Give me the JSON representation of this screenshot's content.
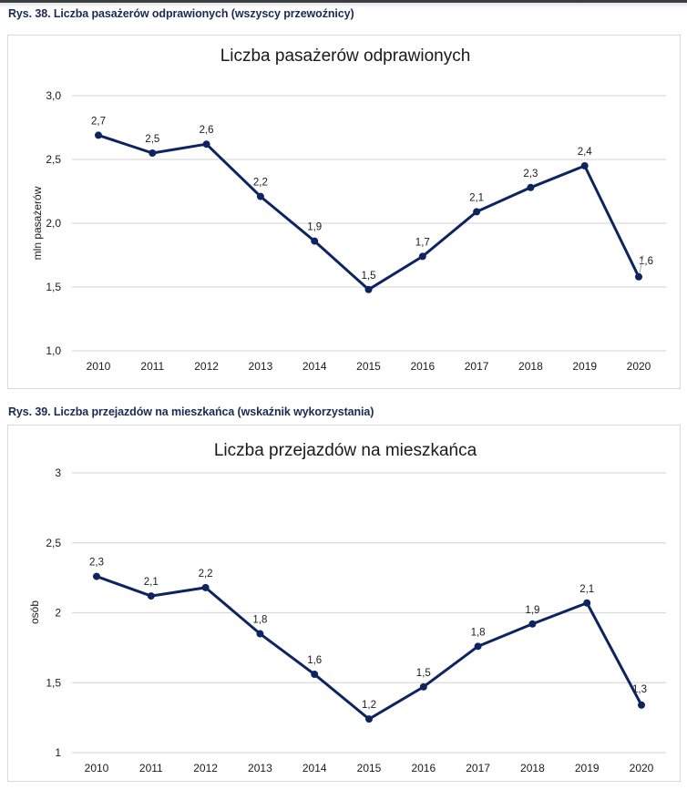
{
  "captions": {
    "fig38": "Rys. 38. Liczba pasażerów odprawionych (wszyscy przewoźnicy)",
    "fig39": "Rys. 39. Liczba przejazdów na mieszkańca (wskaźnik wykorzystania)"
  },
  "colors": {
    "line": "#0d2461",
    "grid": "#d9d9d9",
    "caption": "#1b2a55"
  },
  "chart_data": [
    {
      "type": "line",
      "title": "Liczba pasażerów odprawionych",
      "xlabel": "",
      "ylabel": "mln pasażerów",
      "categories": [
        "2010",
        "2011",
        "2012",
        "2013",
        "2014",
        "2015",
        "2016",
        "2017",
        "2018",
        "2019",
        "2020"
      ],
      "values": [
        2.69,
        2.55,
        2.62,
        2.21,
        1.86,
        1.48,
        1.74,
        2.09,
        2.28,
        2.45,
        1.58
      ],
      "data_labels": [
        "2,7",
        "2,5",
        "2,6",
        "2,2",
        "1,9",
        "1,5",
        "1,7",
        "2,1",
        "2,3",
        "2,4",
        "1,6"
      ],
      "ylim": [
        1.0,
        3.0
      ],
      "yticks": [
        1.0,
        1.5,
        2.0,
        2.5,
        3.0
      ],
      "ytick_labels": [
        "1,0",
        "1,5",
        "2,0",
        "2,5",
        "3,0"
      ],
      "grid": true,
      "legend": "none"
    },
    {
      "type": "line",
      "title": "Liczba przejazdów na mieszkańca",
      "xlabel": "",
      "ylabel": "osób",
      "categories": [
        "2010",
        "2011",
        "2012",
        "2013",
        "2014",
        "2015",
        "2016",
        "2017",
        "2018",
        "2019",
        "2020"
      ],
      "values": [
        2.26,
        2.12,
        2.18,
        1.85,
        1.56,
        1.24,
        1.47,
        1.76,
        1.92,
        2.07,
        1.34
      ],
      "data_labels": [
        "2,3",
        "2,1",
        "2,2",
        "1,8",
        "1,6",
        "1,2",
        "1,5",
        "1,8",
        "1,9",
        "2,1",
        "1,3"
      ],
      "ylim": [
        1,
        3
      ],
      "yticks": [
        1,
        1.5,
        2,
        2.5,
        3
      ],
      "ytick_labels": [
        "1",
        "1,5",
        "2",
        "2,5",
        "3"
      ],
      "grid": true,
      "legend": "none"
    }
  ]
}
